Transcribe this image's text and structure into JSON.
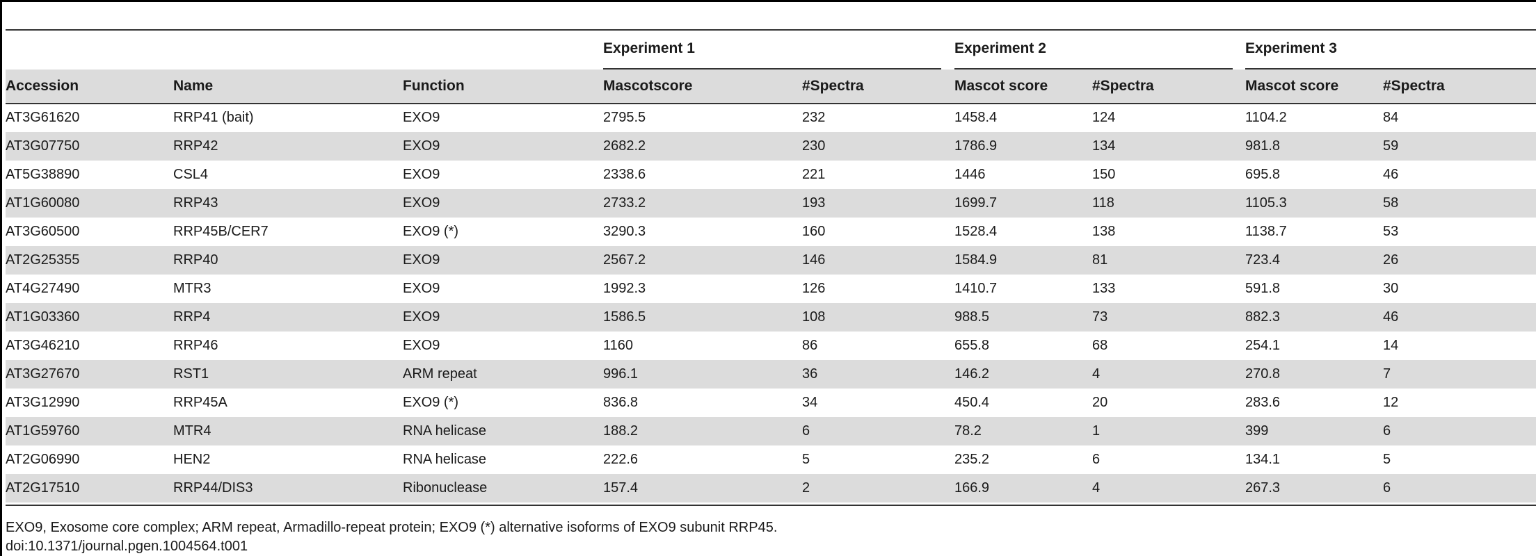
{
  "table": {
    "group_headers": {
      "exp1": "Experiment 1",
      "exp2": "Experiment 2",
      "exp3": "Experiment 3"
    },
    "columns": {
      "accession": "Accession",
      "name": "Name",
      "function": "Function",
      "e1_score": "Mascotscore",
      "e1_spectra": "#Spectra",
      "e2_score": "Mascot score",
      "e2_spectra": "#Spectra",
      "e3_score": "Mascot score",
      "e3_spectra": "#Spectra"
    },
    "rows": [
      {
        "accession": "AT3G61620",
        "name": "RRP41 (bait)",
        "function": "EXO9",
        "e1_score": "2795.5",
        "e1_spectra": "232",
        "e2_score": "1458.4",
        "e2_spectra": "124",
        "e3_score": "1104.2",
        "e3_spectra": "84"
      },
      {
        "accession": "AT3G07750",
        "name": "RRP42",
        "function": "EXO9",
        "e1_score": "2682.2",
        "e1_spectra": "230",
        "e2_score": "1786.9",
        "e2_spectra": "134",
        "e3_score": "981.8",
        "e3_spectra": "59"
      },
      {
        "accession": "AT5G38890",
        "name": "CSL4",
        "function": "EXO9",
        "e1_score": "2338.6",
        "e1_spectra": "221",
        "e2_score": "1446",
        "e2_spectra": "150",
        "e3_score": "695.8",
        "e3_spectra": "46"
      },
      {
        "accession": "AT1G60080",
        "name": "RRP43",
        "function": "EXO9",
        "e1_score": "2733.2",
        "e1_spectra": "193",
        "e2_score": "1699.7",
        "e2_spectra": "118",
        "e3_score": "1105.3",
        "e3_spectra": "58"
      },
      {
        "accession": "AT3G60500",
        "name": "RRP45B/CER7",
        "function": "EXO9 (*)",
        "e1_score": "3290.3",
        "e1_spectra": "160",
        "e2_score": "1528.4",
        "e2_spectra": "138",
        "e3_score": "1138.7",
        "e3_spectra": "53"
      },
      {
        "accession": "AT2G25355",
        "name": "RRP40",
        "function": "EXO9",
        "e1_score": "2567.2",
        "e1_spectra": "146",
        "e2_score": "1584.9",
        "e2_spectra": "81",
        "e3_score": "723.4",
        "e3_spectra": "26"
      },
      {
        "accession": "AT4G27490",
        "name": "MTR3",
        "function": "EXO9",
        "e1_score": "1992.3",
        "e1_spectra": "126",
        "e2_score": "1410.7",
        "e2_spectra": "133",
        "e3_score": "591.8",
        "e3_spectra": "30"
      },
      {
        "accession": "AT1G03360",
        "name": "RRP4",
        "function": "EXO9",
        "e1_score": "1586.5",
        "e1_spectra": "108",
        "e2_score": "988.5",
        "e2_spectra": "73",
        "e3_score": "882.3",
        "e3_spectra": "46"
      },
      {
        "accession": "AT3G46210",
        "name": "RRP46",
        "function": "EXO9",
        "e1_score": "1160",
        "e1_spectra": "86",
        "e2_score": "655.8",
        "e2_spectra": "68",
        "e3_score": "254.1",
        "e3_spectra": "14"
      },
      {
        "accession": "AT3G27670",
        "name": "RST1",
        "function": "ARM repeat",
        "e1_score": "996.1",
        "e1_spectra": "36",
        "e2_score": "146.2",
        "e2_spectra": "4",
        "e3_score": "270.8",
        "e3_spectra": "7"
      },
      {
        "accession": "AT3G12990",
        "name": "RRP45A",
        "function": "EXO9 (*)",
        "e1_score": "836.8",
        "e1_spectra": "34",
        "e2_score": "450.4",
        "e2_spectra": "20",
        "e3_score": "283.6",
        "e3_spectra": "12"
      },
      {
        "accession": "AT1G59760",
        "name": "MTR4",
        "function": "RNA helicase",
        "e1_score": "188.2",
        "e1_spectra": "6",
        "e2_score": "78.2",
        "e2_spectra": "1",
        "e3_score": "399",
        "e3_spectra": "6"
      },
      {
        "accession": "AT2G06990",
        "name": "HEN2",
        "function": "RNA helicase",
        "e1_score": "222.6",
        "e1_spectra": "5",
        "e2_score": "235.2",
        "e2_spectra": "6",
        "e3_score": "134.1",
        "e3_spectra": "5"
      },
      {
        "accession": "AT2G17510",
        "name": "RRP44/DIS3",
        "function": "Ribonuclease",
        "e1_score": "157.4",
        "e1_spectra": "2",
        "e2_score": "166.9",
        "e2_spectra": "4",
        "e3_score": "267.3",
        "e3_spectra": "6"
      }
    ]
  },
  "footnote": "EXO9, Exosome core complex; ARM repeat, Armadillo-repeat protein; EXO9 (*) alternative isoforms of EXO9 subunit RRP45.",
  "doi": "doi:10.1371/journal.pgen.1004564.t001"
}
